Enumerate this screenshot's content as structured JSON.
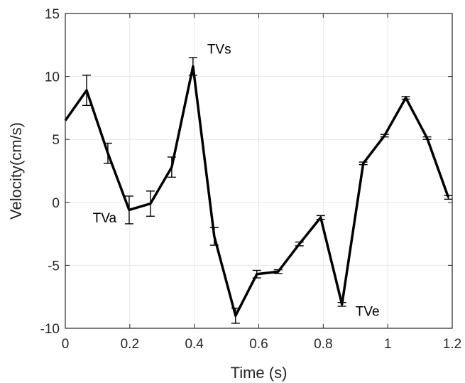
{
  "chart_data": {
    "type": "line",
    "title": "",
    "xlabel": "Time (s)",
    "ylabel": "Velocity(cm/s)",
    "xlim": [
      0,
      1.2
    ],
    "ylim": [
      -10,
      15
    ],
    "xticks": [
      0,
      0.2,
      0.4,
      0.6,
      0.8,
      1,
      1.2
    ],
    "xtick_labels": [
      "0",
      "0.2",
      "0.4",
      "0.6",
      "0.8",
      "1",
      "1.2"
    ],
    "yticks": [
      -10,
      -5,
      0,
      5,
      10,
      15
    ],
    "ytick_labels": [
      "-10",
      "-5",
      "0",
      "5",
      "10",
      "15"
    ],
    "grid": true,
    "colors": {
      "line": "#000000",
      "grid": "#e6e6e6",
      "axis": "#262626"
    },
    "series": [
      {
        "x": [
          0,
          0.066,
          0.132,
          0.198,
          0.264,
          0.33,
          0.396,
          0.462,
          0.528,
          0.594,
          0.66,
          0.726,
          0.792,
          0.858,
          0.924,
          0.99,
          1.056,
          1.122,
          1.188
        ],
        "y": [
          6.5,
          8.9,
          3.9,
          -0.6,
          -0.1,
          2.8,
          10.8,
          -2.7,
          -9.0,
          -5.7,
          -5.5,
          -3.3,
          -1.2,
          -8.1,
          3.1,
          5.3,
          8.3,
          5.1,
          0.4
        ],
        "err": [
          null,
          1.2,
          0.8,
          1.1,
          1.0,
          0.8,
          0.7,
          0.7,
          0.6,
          0.3,
          0.15,
          0.15,
          0.15,
          0.15,
          0.1,
          0.1,
          0.1,
          0.1,
          0.15
        ]
      }
    ],
    "annotations": [
      {
        "text": "TVs",
        "x": 0.44,
        "y": 11.8
      },
      {
        "text": "TVa",
        "x": 0.085,
        "y": -1.6
      },
      {
        "text": "TVe",
        "x": 0.9,
        "y": -9.0
      }
    ]
  }
}
